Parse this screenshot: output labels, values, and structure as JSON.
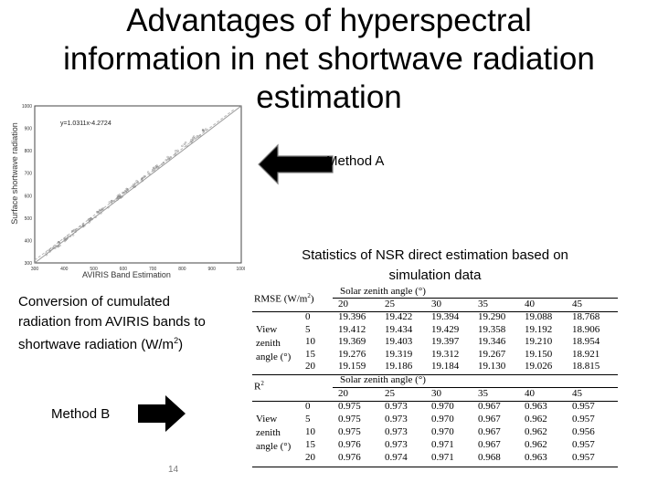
{
  "title": {
    "line1": "Advantages of hyperspectral",
    "line2": "information in net shortwave radiation",
    "line3": "estimation"
  },
  "scatter_plot": {
    "equation": "y=1.0311x-4.2724",
    "xlabel": "AVIRIS Band Estimation",
    "ylabel": "Surface shortwave radiation",
    "x_ticks": [
      "300",
      "400",
      "500",
      "600",
      "700",
      "800",
      "900",
      "1000"
    ],
    "y_ticks": [
      "300",
      "400",
      "500",
      "600",
      "700",
      "800",
      "900",
      "1000"
    ]
  },
  "method_a_label": "Method A",
  "method_b_label": "Method B",
  "stats_title": {
    "line1": "Statistics of NSR direct estimation based on",
    "line2": "simulation data"
  },
  "conversion": {
    "line1": "Conversion of cumulated",
    "line2": "radiation from AVIRIS bands to",
    "line3_prefix": "shortwave radiation (W/m",
    "line3_sup": "2",
    "line3_suffix": ")"
  },
  "page_number": "14",
  "table": {
    "rmse_label": "RMSE (W/m",
    "rmse_sup": "2",
    "rmse_suffix": ")",
    "r2_label": "R",
    "r2_sup": "2",
    "group_header": "Solar zenith angle (°)",
    "solar_angles": [
      "20",
      "25",
      "30",
      "35",
      "40",
      "45"
    ],
    "view_label": [
      "View",
      "zenith",
      "angle (°)"
    ],
    "view_angles": [
      "0",
      "5",
      "10",
      "15",
      "20"
    ],
    "rmse_values": [
      [
        "19.396",
        "19.422",
        "19.394",
        "19.290",
        "19.088",
        "18.768"
      ],
      [
        "19.412",
        "19.434",
        "19.429",
        "19.358",
        "19.192",
        "18.906"
      ],
      [
        "19.369",
        "19.403",
        "19.397",
        "19.346",
        "19.210",
        "18.954"
      ],
      [
        "19.276",
        "19.319",
        "19.312",
        "19.267",
        "19.150",
        "18.921"
      ],
      [
        "19.159",
        "19.186",
        "19.184",
        "19.130",
        "19.026",
        "18.815"
      ]
    ],
    "r2_values": [
      [
        "0.975",
        "0.973",
        "0.970",
        "0.967",
        "0.963",
        "0.957"
      ],
      [
        "0.975",
        "0.973",
        "0.970",
        "0.967",
        "0.962",
        "0.957"
      ],
      [
        "0.975",
        "0.973",
        "0.970",
        "0.967",
        "0.962",
        "0.956"
      ],
      [
        "0.976",
        "0.973",
        "0.971",
        "0.967",
        "0.962",
        "0.957"
      ],
      [
        "0.976",
        "0.974",
        "0.971",
        "0.968",
        "0.963",
        "0.957"
      ]
    ]
  }
}
